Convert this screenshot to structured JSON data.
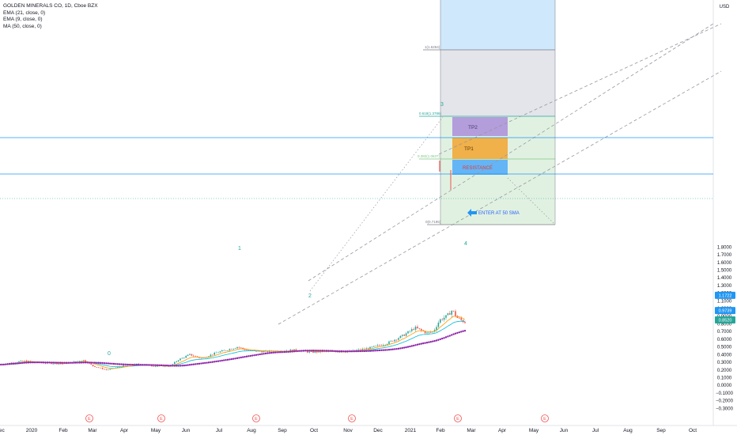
{
  "legend": {
    "symbol_line": "GOLDEN MINERALS CO, 1D, Cboe BZX",
    "ema21": "EMA (21, close, 0)",
    "ema9": "EMA (9, close, 0)",
    "ma50": "MA (50, close, 0)"
  },
  "chart_data": {
    "type": "candlestick",
    "currency_label": "USD",
    "y_axis_ticks": [
      "1.8000",
      "1.7000",
      "1.6000",
      "1.5000",
      "1.4000",
      "1.3000",
      "1.2000",
      "1.1000",
      "1.0000",
      "0.9000",
      "0.8000",
      "0.7000",
      "0.6000",
      "0.5000",
      "0.4000",
      "0.3000",
      "0.2000",
      "0.1000",
      "0.0000",
      "−0.1000",
      "−0.2000",
      "−0.3000"
    ],
    "y_range": [
      -0.31,
      1.84
    ],
    "x_axis_labels": [
      "Dec",
      "2020",
      "Feb",
      "Mar",
      "Apr",
      "May",
      "Jun",
      "Jul",
      "Aug",
      "Sep",
      "Oct",
      "Nov",
      "Dec",
      "2021",
      "Feb",
      "Mar",
      "Apr",
      "May",
      "Jun",
      "Jul",
      "Aug",
      "Sep",
      "Oct"
    ],
    "price_badges": [
      {
        "value": "1.1722",
        "color": "#2196f3"
      },
      {
        "value": "0.9739",
        "color": "#2196f3"
      },
      {
        "value": "0.8520",
        "color": "#26a69a"
      }
    ],
    "horizontal_lines": [
      1.1722,
      0.9739,
      0.852
    ],
    "fib_labels": {
      "level_1": "1(1.6264)",
      "level_0618": "0.618(1.3786)",
      "level_0382": "0.382(1.0637)",
      "level_0": "0(0.7195)"
    },
    "wave_labels": [
      "0",
      "1",
      "2",
      "3",
      "4"
    ],
    "targets": {
      "tp2": "TP2",
      "tp1": "TP1",
      "resistance": "RESISTANCE"
    },
    "annotation": "ENTER AT 50 SMA",
    "earnings_marker": "E",
    "colors": {
      "up": "#26a69a",
      "down": "#ef5350",
      "ema21": "#00bcd4",
      "ema9": "#ff9800",
      "ma50": "#8e24aa",
      "badge_blue": "#2196f3"
    }
  }
}
